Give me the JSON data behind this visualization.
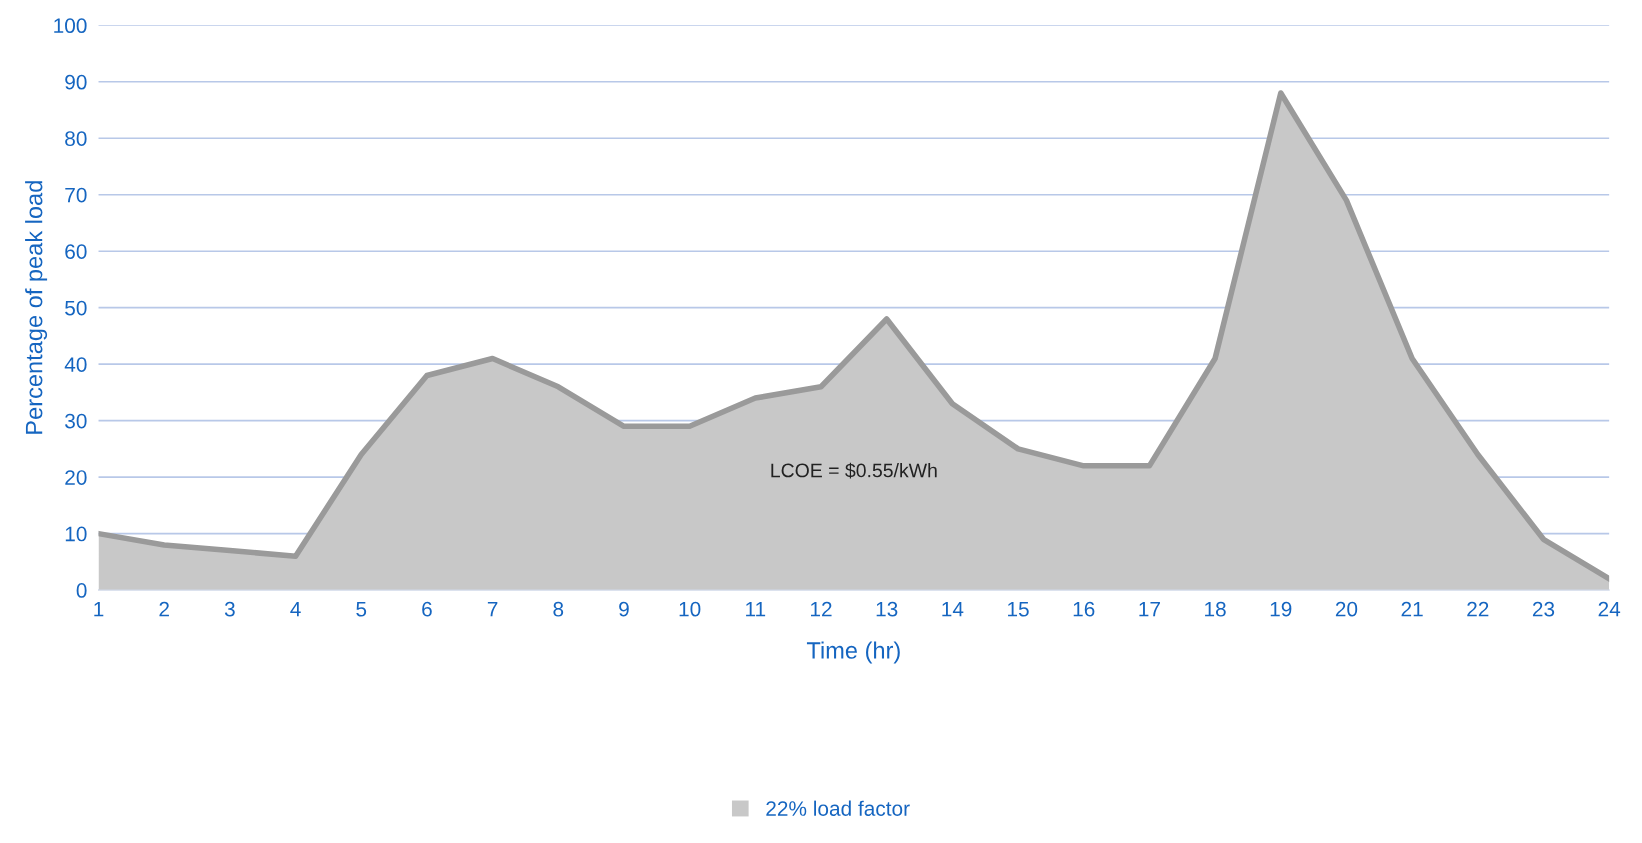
{
  "chart_data": {
    "type": "area",
    "xlabel": "Time (hr)",
    "ylabel": "Percentage of peak load",
    "categories": [
      "1",
      "2",
      "3",
      "4",
      "5",
      "6",
      "7",
      "8",
      "9",
      "10",
      "11",
      "12",
      "13",
      "14",
      "15",
      "16",
      "17",
      "18",
      "19",
      "20",
      "21",
      "22",
      "23",
      "24"
    ],
    "series": [
      {
        "name": "22% load factor",
        "color": "#c8c8c8",
        "values": [
          10,
          8,
          7,
          6,
          24,
          38,
          41,
          36,
          29,
          29,
          34,
          36,
          48,
          33,
          25,
          22,
          22,
          41,
          88,
          69,
          41,
          24,
          9,
          2
        ]
      }
    ],
    "ylim": [
      0,
      100
    ],
    "yticks": [
      0,
      10,
      20,
      30,
      40,
      50,
      60,
      70,
      80,
      90,
      100
    ],
    "annotations": [
      "LCOE = $0.55/kWh"
    ],
    "grid": "y",
    "legend": "bottom"
  }
}
